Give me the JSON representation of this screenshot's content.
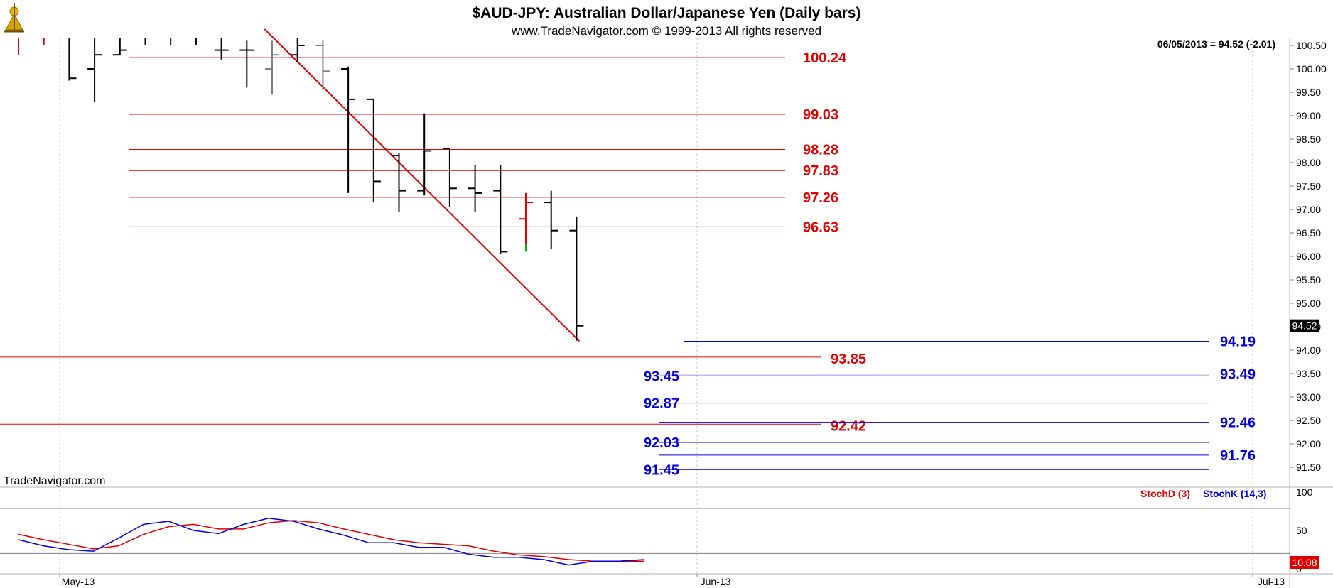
{
  "chart_data": {
    "type": "ohlc",
    "title": "$AUD-JPY:  Australian Dollar/Japanese Yen  (Daily bars)",
    "subtitle": "www.TradeNavigator.com © 1999-2013 All rights reserved",
    "watermark": "TradeNavigator.com",
    "last_value_label": "06/05/2013 = 94.52 (-2.01)",
    "current_price_tag": "94.52",
    "price_axis": {
      "range": [
        91.0,
        100.8
      ],
      "ticks": [
        "91.50",
        "92.00",
        "92.50",
        "93.00",
        "93.50",
        "94.00",
        "94.50",
        "95.00",
        "95.50",
        "96.00",
        "96.50",
        "97.00",
        "97.50",
        "98.00",
        "98.50",
        "99.00",
        "99.50",
        "100.00",
        "100.50"
      ]
    },
    "x_axis_labels": [
      "May-13",
      "Jun-13",
      "Jul-13"
    ],
    "bars": [
      {
        "o": 100.7,
        "h": 100.9,
        "l": 100.3,
        "c": 100.7,
        "color": "#e00000"
      },
      {
        "o": 100.7,
        "h": 100.9,
        "l": 100.5,
        "c": 100.7,
        "color": "#e00000"
      },
      {
        "o": 100.9,
        "h": 100.9,
        "l": 99.75,
        "c": 99.8,
        "color": "#000000"
      },
      {
        "o": 100.0,
        "h": 100.9,
        "l": 99.3,
        "c": 100.3,
        "color": "#000000"
      },
      {
        "o": 100.3,
        "h": 100.9,
        "l": 100.3,
        "c": 100.4,
        "color": "#000000"
      },
      {
        "o": 100.8,
        "h": 100.9,
        "l": 100.5,
        "c": 100.9,
        "color": "#000000"
      },
      {
        "o": 100.8,
        "h": 100.9,
        "l": 100.5,
        "c": 100.9,
        "color": "#000000"
      },
      {
        "o": 100.8,
        "h": 100.9,
        "l": 100.5,
        "c": 100.9,
        "color": "#000000"
      },
      {
        "o": 100.4,
        "h": 100.9,
        "l": 100.2,
        "c": 100.4,
        "color": "#000000"
      },
      {
        "o": 100.4,
        "h": 100.6,
        "l": 99.6,
        "c": 100.4,
        "color": "#000000"
      },
      {
        "o": 100.0,
        "h": 100.6,
        "l": 99.45,
        "c": 100.3,
        "color": "#808080"
      },
      {
        "o": 100.3,
        "h": 100.9,
        "l": 100.15,
        "c": 100.5,
        "color": "#000000"
      },
      {
        "o": 100.5,
        "h": 100.6,
        "l": 99.55,
        "c": 99.95,
        "color": "#808080"
      },
      {
        "o": 100.0,
        "h": 100.05,
        "l": 97.35,
        "c": 99.35,
        "color": "#000000"
      },
      {
        "o": 99.35,
        "h": 99.35,
        "l": 97.15,
        "c": 97.6,
        "color": "#000000"
      },
      {
        "o": 98.15,
        "h": 98.2,
        "l": 96.95,
        "c": 97.4,
        "color": "#000000"
      },
      {
        "o": 97.4,
        "h": 99.05,
        "l": 97.3,
        "c": 98.25,
        "color": "#000000"
      },
      {
        "o": 98.3,
        "h": 98.3,
        "l": 97.05,
        "c": 97.45,
        "color": "#000000"
      },
      {
        "o": 97.45,
        "h": 97.95,
        "l": 96.95,
        "c": 97.35,
        "color": "#000000"
      },
      {
        "o": 97.4,
        "h": 97.95,
        "l": 96.05,
        "c": 96.1,
        "color": "#000000"
      },
      {
        "o": 96.8,
        "h": 97.35,
        "l": 96.1,
        "c": 97.15,
        "color": "#e00000"
      },
      {
        "o": 97.15,
        "h": 97.4,
        "l": 96.15,
        "c": 96.55,
        "color": "#000000"
      },
      {
        "o": 96.55,
        "h": 96.85,
        "l": 94.2,
        "c": 94.52,
        "color": "#000000"
      }
    ],
    "resistance_levels": [
      "100.24",
      "99.03",
      "98.28",
      "97.83",
      "97.26",
      "96.63"
    ],
    "red_long_levels": [
      "93.85",
      "92.42"
    ],
    "blue_levels_left": [
      "93.45",
      "92.87",
      "92.03",
      "91.45"
    ],
    "blue_levels_right": [
      "94.19",
      "93.49",
      "92.46",
      "91.76"
    ],
    "trendline": {
      "from": {
        "bar": 9.7,
        "price": 100.85
      },
      "to": {
        "bar": 22,
        "price": 94.19
      }
    },
    "stochastic": {
      "legend": [
        "StochD (3)",
        "StochK (14,3)"
      ],
      "axis_ticks": [
        "0",
        "50",
        "100"
      ],
      "current_value_tag": "10.08",
      "stochK": [
        38,
        30,
        25,
        23,
        40,
        58,
        62,
        50,
        46,
        58,
        66,
        62,
        52,
        44,
        34,
        34,
        28,
        28,
        19,
        15,
        15,
        12,
        5,
        10,
        10,
        12
      ],
      "stochD": [
        45,
        38,
        32,
        26,
        30,
        45,
        55,
        58,
        52,
        52,
        60,
        63,
        60,
        52,
        45,
        38,
        34,
        32,
        30,
        23,
        18,
        16,
        12,
        10,
        10,
        10
      ]
    },
    "colors": {
      "red": "#e00000",
      "blue": "#0000d8",
      "grid": "#c8c8c8"
    }
  }
}
